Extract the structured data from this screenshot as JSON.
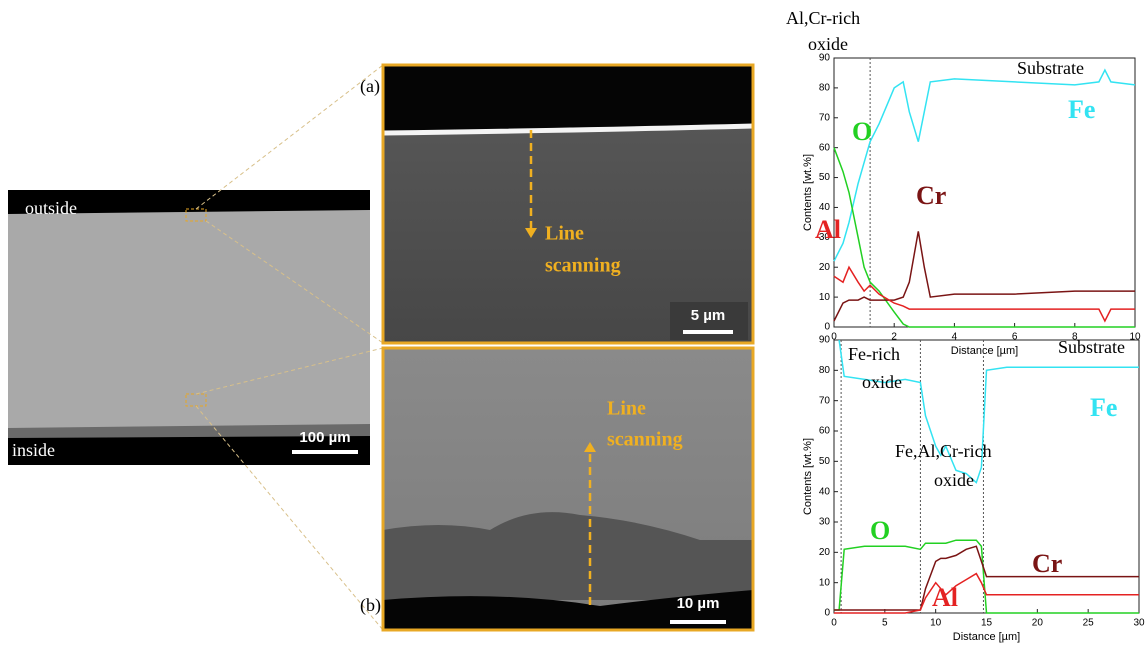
{
  "overview": {
    "outside": "outside",
    "inside": "inside",
    "scale": "100 µm"
  },
  "panel_a": {
    "label": "(a)",
    "scan": [
      "Line",
      "scanning"
    ],
    "scale": "5 µm"
  },
  "panel_b": {
    "label": "(b)",
    "scan": [
      "Line",
      "scanning"
    ],
    "scale": "10 µm"
  },
  "chart_data": [
    {
      "type": "line",
      "xlabel": "Distance [µm]",
      "ylabel": "Contents [wt.%]",
      "xlim": [
        0,
        10
      ],
      "xticks": [
        0,
        2,
        4,
        6,
        8,
        10
      ],
      "ylim": [
        0,
        90
      ],
      "yticks": [
        0,
        10,
        20,
        30,
        40,
        50,
        60,
        70,
        80,
        90
      ],
      "boundaries": [
        1.2
      ],
      "annotations": [
        {
          "lines": [
            "Al,Cr-rich",
            "oxide"
          ]
        },
        {
          "lines": [
            "Substrate"
          ]
        }
      ],
      "x": [
        0,
        0.3,
        0.5,
        0.8,
        1,
        1.2,
        1.5,
        2,
        2.3,
        2.5,
        2.8,
        3,
        3.2,
        4,
        6,
        8,
        8.8,
        9,
        9.2,
        10
      ],
      "series": [
        {
          "name": "Fe",
          "color": "#33e3f2",
          "values": [
            22,
            28,
            35,
            48,
            55,
            62,
            68,
            80,
            82,
            72,
            62,
            72,
            82,
            83,
            82,
            81,
            82,
            86,
            82,
            81
          ]
        },
        {
          "name": "O",
          "color": "#22d022",
          "values": [
            60,
            52,
            45,
            30,
            20,
            15,
            12,
            5,
            1,
            0,
            0,
            0,
            0,
            0,
            0,
            0,
            0,
            0,
            0,
            0
          ]
        },
        {
          "name": "Cr",
          "color": "#7a1414",
          "values": [
            2,
            8,
            9,
            9,
            10,
            9,
            9,
            9,
            10,
            15,
            32,
            20,
            10,
            11,
            11,
            12,
            12,
            12,
            12,
            12
          ]
        },
        {
          "name": "Al",
          "color": "#e42222",
          "values": [
            17,
            15,
            20,
            15,
            12,
            14,
            11,
            8,
            7,
            6,
            6,
            6,
            6,
            6,
            6,
            6,
            6,
            2,
            6,
            6
          ]
        }
      ]
    },
    {
      "type": "line",
      "xlabel": "Distance [µm]",
      "ylabel": "Contents [wt.%]",
      "xlim": [
        0,
        30
      ],
      "xticks": [
        0,
        5,
        10,
        15,
        20,
        25,
        30
      ],
      "ylim": [
        0,
        90
      ],
      "yticks": [
        0,
        10,
        20,
        30,
        40,
        50,
        60,
        70,
        80,
        90
      ],
      "boundaries": [
        0.7,
        8.5,
        14.7
      ],
      "annotations": [
        {
          "lines": [
            "Fe-rich",
            "oxide"
          ]
        },
        {
          "lines": [
            "Fe,Al,Cr-rich",
            "oxide"
          ]
        },
        {
          "lines": [
            "Substrate"
          ]
        }
      ],
      "x": [
        0,
        0.5,
        1,
        3,
        5,
        7,
        8.5,
        9,
        10,
        10.5,
        11,
        12,
        13,
        14,
        14.5,
        15,
        17,
        20,
        25,
        30
      ],
      "series": [
        {
          "name": "Fe",
          "color": "#33e3f2",
          "values": [
            null,
            90,
            78,
            77,
            76,
            77,
            76,
            65,
            55,
            52,
            55,
            47,
            46,
            43,
            48,
            80,
            81,
            81,
            81,
            81
          ]
        },
        {
          "name": "O",
          "color": "#22d022",
          "values": [
            1,
            1,
            21,
            22,
            22,
            22,
            21,
            23,
            23,
            23,
            23,
            24,
            24,
            24,
            22,
            0,
            0,
            0,
            0,
            0
          ]
        },
        {
          "name": "Cr",
          "color": "#7a1414",
          "values": [
            1,
            1,
            1,
            1,
            1,
            1,
            1,
            8,
            17,
            18,
            18,
            19,
            21,
            22,
            17,
            12,
            12,
            12,
            12,
            12
          ]
        },
        {
          "name": "Al",
          "color": "#e42222",
          "values": [
            0,
            0,
            0,
            0,
            0,
            0,
            1,
            5,
            10,
            8,
            6,
            9,
            11,
            13,
            10,
            6,
            6,
            6,
            6,
            6
          ]
        }
      ]
    }
  ]
}
